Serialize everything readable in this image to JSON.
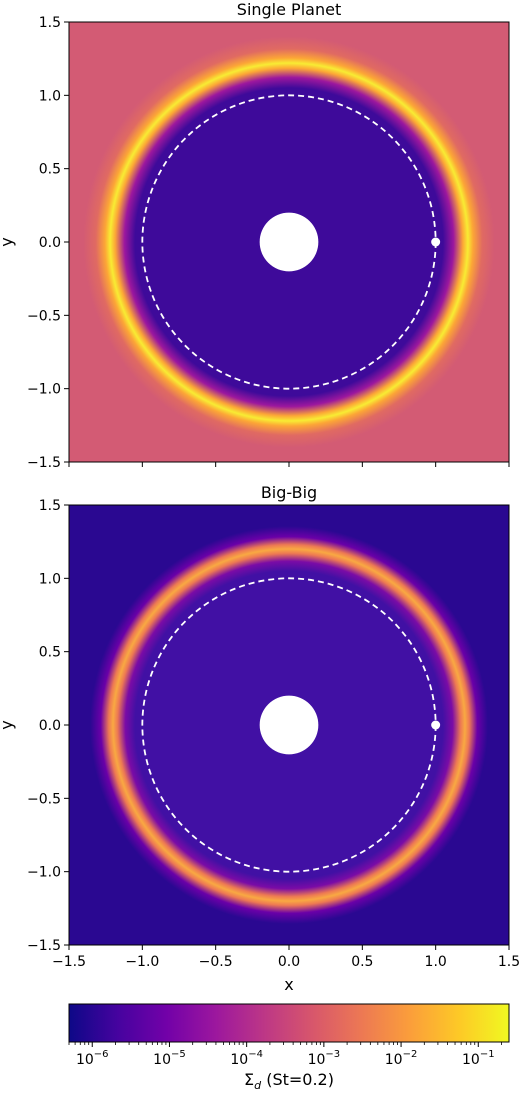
{
  "chart_data": [
    {
      "type": "heatmap",
      "title": "Single Planet",
      "xlabel": "",
      "ylabel": "y",
      "xlim": [
        -1.5,
        1.5
      ],
      "ylim": [
        -1.5,
        1.5
      ],
      "xticks": [
        "",
        "",
        "",
        "",
        "",
        "",
        ""
      ],
      "yticks": [
        "−1.5",
        "−1.0",
        "−0.5",
        "0.0",
        "0.5",
        "1.0",
        "1.5"
      ],
      "background": "#d35b74",
      "gap": {
        "color": "#3e0a9a",
        "r_in": 0.2,
        "r_out": 1.07
      },
      "ring": {
        "r": 1.22,
        "width": 0.07,
        "peak_color": "#f8ec33"
      },
      "inner_hole_radius": 0.2,
      "orbit_radius": 1.0,
      "planets": [
        {
          "x": 1.0,
          "y": 0.0
        }
      ]
    },
    {
      "type": "heatmap",
      "title": "Big-Big",
      "xlabel": "x",
      "ylabel": "y",
      "xlim": [
        -1.5,
        1.5
      ],
      "ylim": [
        -1.5,
        1.5
      ],
      "xticks": [
        "−1.5",
        "−1.0",
        "−0.5",
        "0.0",
        "0.5",
        "1.0",
        "1.5"
      ],
      "yticks": [
        "−1.5",
        "−1.0",
        "−0.5",
        "0.0",
        "0.5",
        "1.0",
        "1.5"
      ],
      "background": "#2a0891",
      "gap": {
        "color": "#4110a4",
        "r_in": 0.2,
        "r_out": 1.07
      },
      "ring": {
        "r": 1.2,
        "width": 0.06,
        "peak_color": "#f9a942"
      },
      "inner_hole_radius": 0.2,
      "orbit_radius": 1.0,
      "planets": [
        {
          "x": 1.0,
          "y": 0.0
        }
      ]
    }
  ],
  "colorbar": {
    "label": "Σ_d (St=0.2)",
    "label_main": "Σ",
    "label_sub": "d",
    "label_rest": " (St=0.2)",
    "scale": "log",
    "range": [
      5e-07,
      0.25
    ],
    "ticks": [
      {
        "value": 1e-06,
        "base": "10",
        "exp": "−6"
      },
      {
        "value": 1e-05,
        "base": "10",
        "exp": "−5"
      },
      {
        "value": 0.0001,
        "base": "10",
        "exp": "−4"
      },
      {
        "value": 0.001,
        "base": "10",
        "exp": "−3"
      },
      {
        "value": 0.01,
        "base": "10",
        "exp": "−2"
      },
      {
        "value": 0.1,
        "base": "10",
        "exp": "−1"
      }
    ],
    "colormap": "plasma",
    "colormap_stops": [
      "#0d0887",
      "#46039f",
      "#7201a8",
      "#9c179e",
      "#bd3786",
      "#d8576b",
      "#ed7953",
      "#fb9f3a",
      "#fdca26",
      "#f0f921"
    ]
  }
}
